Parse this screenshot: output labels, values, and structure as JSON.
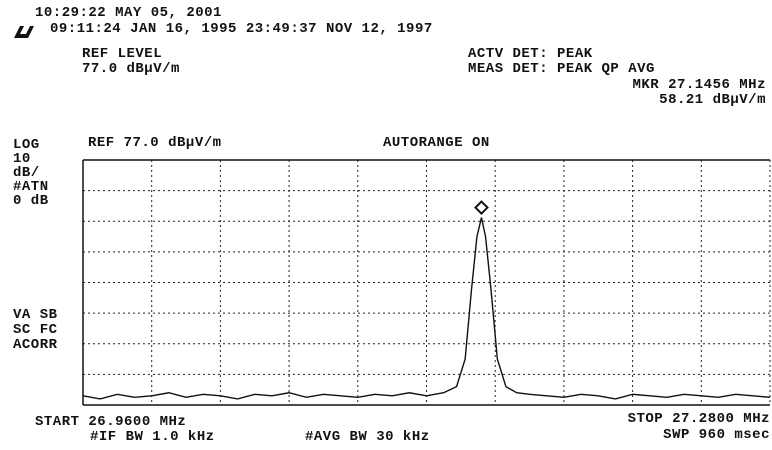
{
  "chart_data": {
    "type": "line",
    "clock": "10:29:22 MAY 05, 2001",
    "dates": "09:11:24 JAN 16, 1995 23:49:37 NOV 12, 1997",
    "ref_level_label": "REF LEVEL",
    "ref_level_value": "77.0 dBµV/m",
    "actv_det": "ACTV DET: PEAK",
    "meas_det": "MEAS DET: PEAK QP AVG",
    "marker_freq": "MKR 27.1456 MHz",
    "marker_level": "58.21 dBµV/m",
    "scale_lines": [
      "LOG",
      "10",
      "dB/",
      "#ATN",
      "0 dB"
    ],
    "ref_header": "REF 77.0 dBµV/m",
    "autorange": "AUTORANGE ON",
    "status_lines": [
      "VA SB",
      "SC FC",
      "ACORR"
    ],
    "start": "START 26.9600 MHz",
    "stop": "STOP 27.2800 MHz",
    "if_bw": "#IF BW 1.0 kHz",
    "avg_bw": "#AVG BW 30 kHz",
    "sweep": "SWP 960 msec",
    "x": [
      26.96,
      26.968,
      26.976,
      26.984,
      26.992,
      27.0,
      27.008,
      27.016,
      27.024,
      27.032,
      27.04,
      27.048,
      27.056,
      27.064,
      27.072,
      27.08,
      27.088,
      27.096,
      27.104,
      27.112,
      27.12,
      27.128,
      27.134,
      27.138,
      27.141,
      27.1435,
      27.1456,
      27.1475,
      27.15,
      27.153,
      27.157,
      27.162,
      27.168,
      27.176,
      27.184,
      27.192,
      27.2,
      27.208,
      27.216,
      27.224,
      27.232,
      27.24,
      27.248,
      27.256,
      27.264,
      27.272,
      27.28
    ],
    "series": [
      {
        "color": "#111111",
        "values": [
          0,
          -1,
          0.5,
          -0.5,
          0,
          1,
          -0.5,
          0.5,
          0,
          -1,
          0.5,
          0,
          1,
          -0.5,
          0.5,
          0,
          -0.5,
          0.5,
          0,
          1,
          0,
          1,
          3,
          12,
          35,
          52,
          58.21,
          52,
          35,
          12,
          3,
          1,
          0.5,
          0,
          -0.5,
          0.5,
          0,
          -1,
          0.5,
          0,
          -0.5,
          0.5,
          0,
          -0.5,
          0.5,
          0,
          -0.5
        ]
      }
    ],
    "marker_index": 26,
    "xlim": [
      26.96,
      27.28
    ],
    "ylim": [
      -3,
      77
    ],
    "xticks": [
      26.96,
      26.992,
      27.024,
      27.056,
      27.088,
      27.12,
      27.152,
      27.184,
      27.216,
      27.248,
      27.28
    ],
    "yticks": [
      -3,
      7,
      17,
      27,
      37,
      47,
      57,
      67,
      77
    ],
    "grid": true
  }
}
